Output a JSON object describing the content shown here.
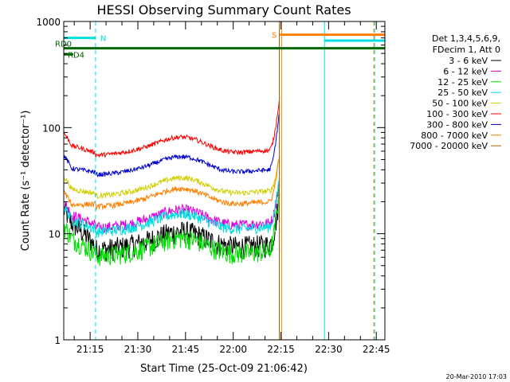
{
  "chart_data": {
    "type": "line",
    "title": "HESSI Observing Summary Count Rates",
    "ylabel": "Count Rate (s⁻¹ detector⁻¹)",
    "xlabel": "Start Time (25-Oct-09 21:06:42)",
    "y_scale": "log",
    "ylim": [
      1,
      1000
    ],
    "y_ticks": [
      "1",
      "10",
      "100",
      "1000"
    ],
    "xlim_minutes": [
      0,
      101
    ],
    "x_ticks": [
      {
        "label": "21:15",
        "t": 8.3
      },
      {
        "label": "21:30",
        "t": 23.3
      },
      {
        "label": "21:45",
        "t": 38.3
      },
      {
        "label": "22:00",
        "t": 53.3
      },
      {
        "label": "22:15",
        "t": 68.3
      },
      {
        "label": "22:30",
        "t": 83.3
      },
      {
        "label": "22:45",
        "t": 98.3
      }
    ],
    "legend_header": [
      "Det 1,3,4,5,6,9,",
      "FDecim 1, Att 0"
    ],
    "legend_position": "right",
    "series": [
      {
        "name": "3 - 6 keV",
        "color": "#000000",
        "start": 17,
        "mid": 7.5,
        "flare": 18,
        "noise": 0.25
      },
      {
        "name": "6 - 12 keV",
        "color": "#e000e0",
        "start": 20,
        "mid": 12,
        "flare": 25,
        "noise": 0.12
      },
      {
        "name": "12 - 25 keV",
        "color": "#00e000",
        "start": 12,
        "mid": 6.5,
        "flare": 20,
        "noise": 0.22
      },
      {
        "name": "25 - 50 keV",
        "color": "#00e0e0",
        "start": 18,
        "mid": 11,
        "flare": 28,
        "noise": 0.12
      },
      {
        "name": "50 - 100 keV",
        "color": "#d0d000",
        "start": 35,
        "mid": 24,
        "flare": 45,
        "noise": 0.06
      },
      {
        "name": "100 - 300 keV",
        "color": "#ff0000",
        "start": 90,
        "mid": 58,
        "flare": 150,
        "noise": 0.05
      },
      {
        "name": "300 - 800 keV",
        "color": "#0000cc",
        "start": 55,
        "mid": 38,
        "flare": 110,
        "noise": 0.05
      },
      {
        "name": "800 - 7000 keV",
        "color": "#ff8000",
        "start": 25,
        "mid": 19,
        "flare": 45,
        "noise": 0.06
      },
      {
        "name": "7000 - 20000 keV",
        "color": "#996600",
        "start": 0,
        "mid": 0,
        "flare": 0,
        "noise": 0
      }
    ],
    "flags": [
      {
        "label": "N",
        "color": "#00e0e0",
        "start": 0,
        "end": 10,
        "value": 700
      },
      {
        "label": "S",
        "color": "#ff8000",
        "start": 68,
        "end": 101,
        "value": 750
      },
      {
        "label": "",
        "color": "#00e0e0",
        "start": 82,
        "end": 101,
        "value": 660
      },
      {
        "label": "RD0",
        "color": "#006600",
        "start": 0,
        "end": 101,
        "value": 560
      },
      {
        "label": "RD4",
        "color": "#006600",
        "start": 0,
        "end": 3,
        "value": 490
      }
    ],
    "vlines": [
      {
        "t": 10,
        "color": "#00e0e0",
        "dashed": true
      },
      {
        "t": 68.5,
        "color": "#ff8000",
        "dashed": false
      },
      {
        "t": 67.8,
        "color": "#996600",
        "dashed": false
      },
      {
        "t": 82,
        "color": "#00e0e0",
        "dashed": false
      },
      {
        "t": 97.5,
        "color": "#ff8000",
        "dashed": true
      },
      {
        "t": 97.8,
        "color": "#00e0e0",
        "dashed": true
      }
    ],
    "footer_date": "20-Mar-2010 17:03"
  }
}
